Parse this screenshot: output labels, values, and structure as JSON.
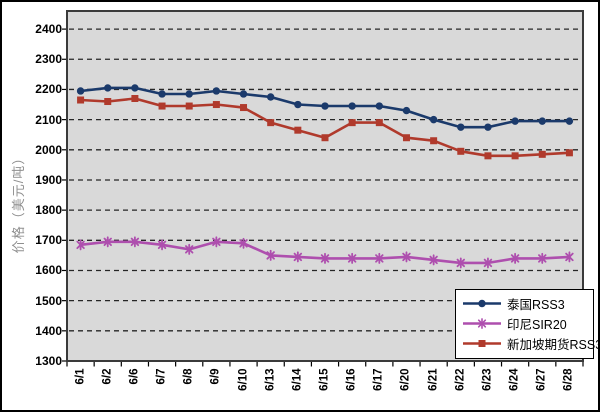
{
  "chart_data": {
    "type": "line",
    "title": "",
    "ylabel": "价格（美元/吨）",
    "xlabel": "",
    "categories": [
      "6/1",
      "6/2",
      "6/6",
      "6/7",
      "6/8",
      "6/9",
      "6/10",
      "6/13",
      "6/14",
      "6/15",
      "6/16",
      "6/17",
      "6/20",
      "6/21",
      "6/22",
      "6/23",
      "6/24",
      "6/27",
      "6/28"
    ],
    "series": [
      {
        "name": "泰国RSS3",
        "marker": "circle",
        "color": "#1B3A6B",
        "values": [
          2195,
          2205,
          2205,
          2185,
          2185,
          2195,
          2185,
          2175,
          2150,
          2145,
          2145,
          2145,
          2130,
          2100,
          2075,
          2075,
          2095,
          2095,
          2095
        ]
      },
      {
        "name": "印尼SIR20",
        "marker": "asterisk",
        "color": "#AE4FAE",
        "values": [
          1685,
          1695,
          1695,
          1685,
          1670,
          1695,
          1690,
          1650,
          1645,
          1640,
          1640,
          1640,
          1645,
          1635,
          1625,
          1625,
          1640,
          1640,
          1645
        ]
      },
      {
        "name": "新加坡期货RSS3",
        "marker": "square",
        "color": "#B03A2C",
        "values": [
          2165,
          2160,
          2170,
          2145,
          2145,
          2150,
          2140,
          2090,
          2065,
          2040,
          2090,
          2090,
          2040,
          2030,
          1995,
          1980,
          1980,
          1985,
          1990
        ]
      }
    ],
    "y_ticks": [
      1300,
      1400,
      1500,
      1600,
      1700,
      1800,
      1900,
      2000,
      2100,
      2200,
      2300,
      2400
    ],
    "ylim": [
      1300,
      2460
    ],
    "grid": "horizontal-dashed",
    "legend_position": "inside-bottom-right",
    "x_tick_label_rotation": 90,
    "plot_bg_color": "#D9D9D9",
    "grid_color": "#262626",
    "plot_border_color": "#3A3A3A",
    "frame_border_color": "#000000"
  }
}
